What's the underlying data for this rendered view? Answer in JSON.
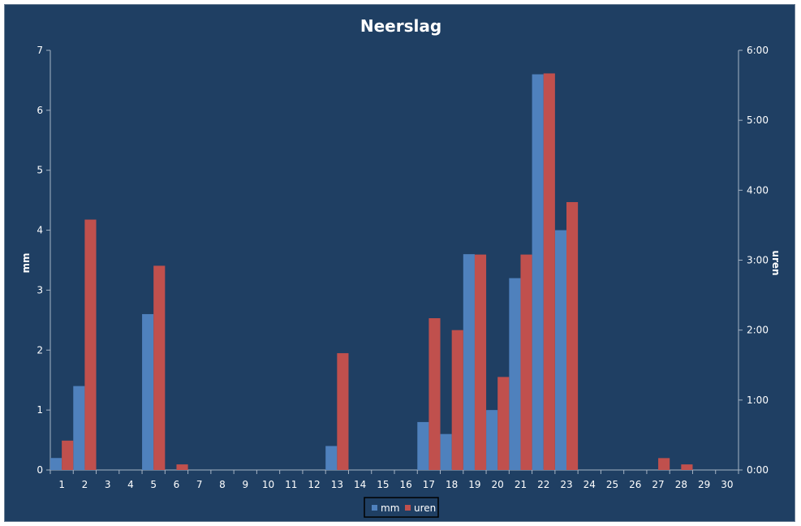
{
  "chart_data": {
    "type": "bar",
    "title": "Neerslag",
    "ylabel": "mm",
    "y2label": "uren",
    "ylim": [
      0,
      7
    ],
    "y2lim": [
      0,
      6
    ],
    "yticks": [
      "0",
      "1",
      "2",
      "3",
      "4",
      "5",
      "6",
      "7"
    ],
    "y2ticks": [
      "0:00",
      "1:00",
      "2:00",
      "3:00",
      "4:00",
      "5:00",
      "6:00"
    ],
    "categories": [
      "1",
      "2",
      "3",
      "4",
      "5",
      "6",
      "7",
      "8",
      "9",
      "10",
      "11",
      "12",
      "13",
      "14",
      "15",
      "16",
      "17",
      "18",
      "19",
      "20",
      "21",
      "22",
      "23",
      "24",
      "25",
      "26",
      "27",
      "28",
      "29",
      "30"
    ],
    "series": [
      {
        "name": "mm",
        "axis": "left",
        "color": "#4f81bd",
        "values": [
          0.2,
          1.4,
          0,
          0,
          2.6,
          0,
          0,
          0,
          0,
          0,
          0,
          0,
          0.4,
          0,
          0,
          0,
          0.8,
          0.6,
          3.6,
          1.0,
          3.2,
          6.6,
          4.0,
          0,
          0,
          0,
          0,
          0,
          0,
          0
        ]
      },
      {
        "name": "uren",
        "axis": "right",
        "color": "#c0504d",
        "values": [
          0.42,
          3.58,
          0,
          0,
          2.92,
          0.08,
          0,
          0,
          0,
          0,
          0,
          0,
          1.67,
          0,
          0,
          0,
          2.17,
          2.0,
          3.08,
          1.33,
          3.08,
          5.67,
          3.83,
          0,
          0,
          0,
          0.17,
          0.08,
          0,
          0
        ]
      }
    ],
    "legend": "bottom",
    "grid": false
  },
  "colors": {
    "background": "#1f3f63",
    "axis": "#a6b4c4"
  }
}
